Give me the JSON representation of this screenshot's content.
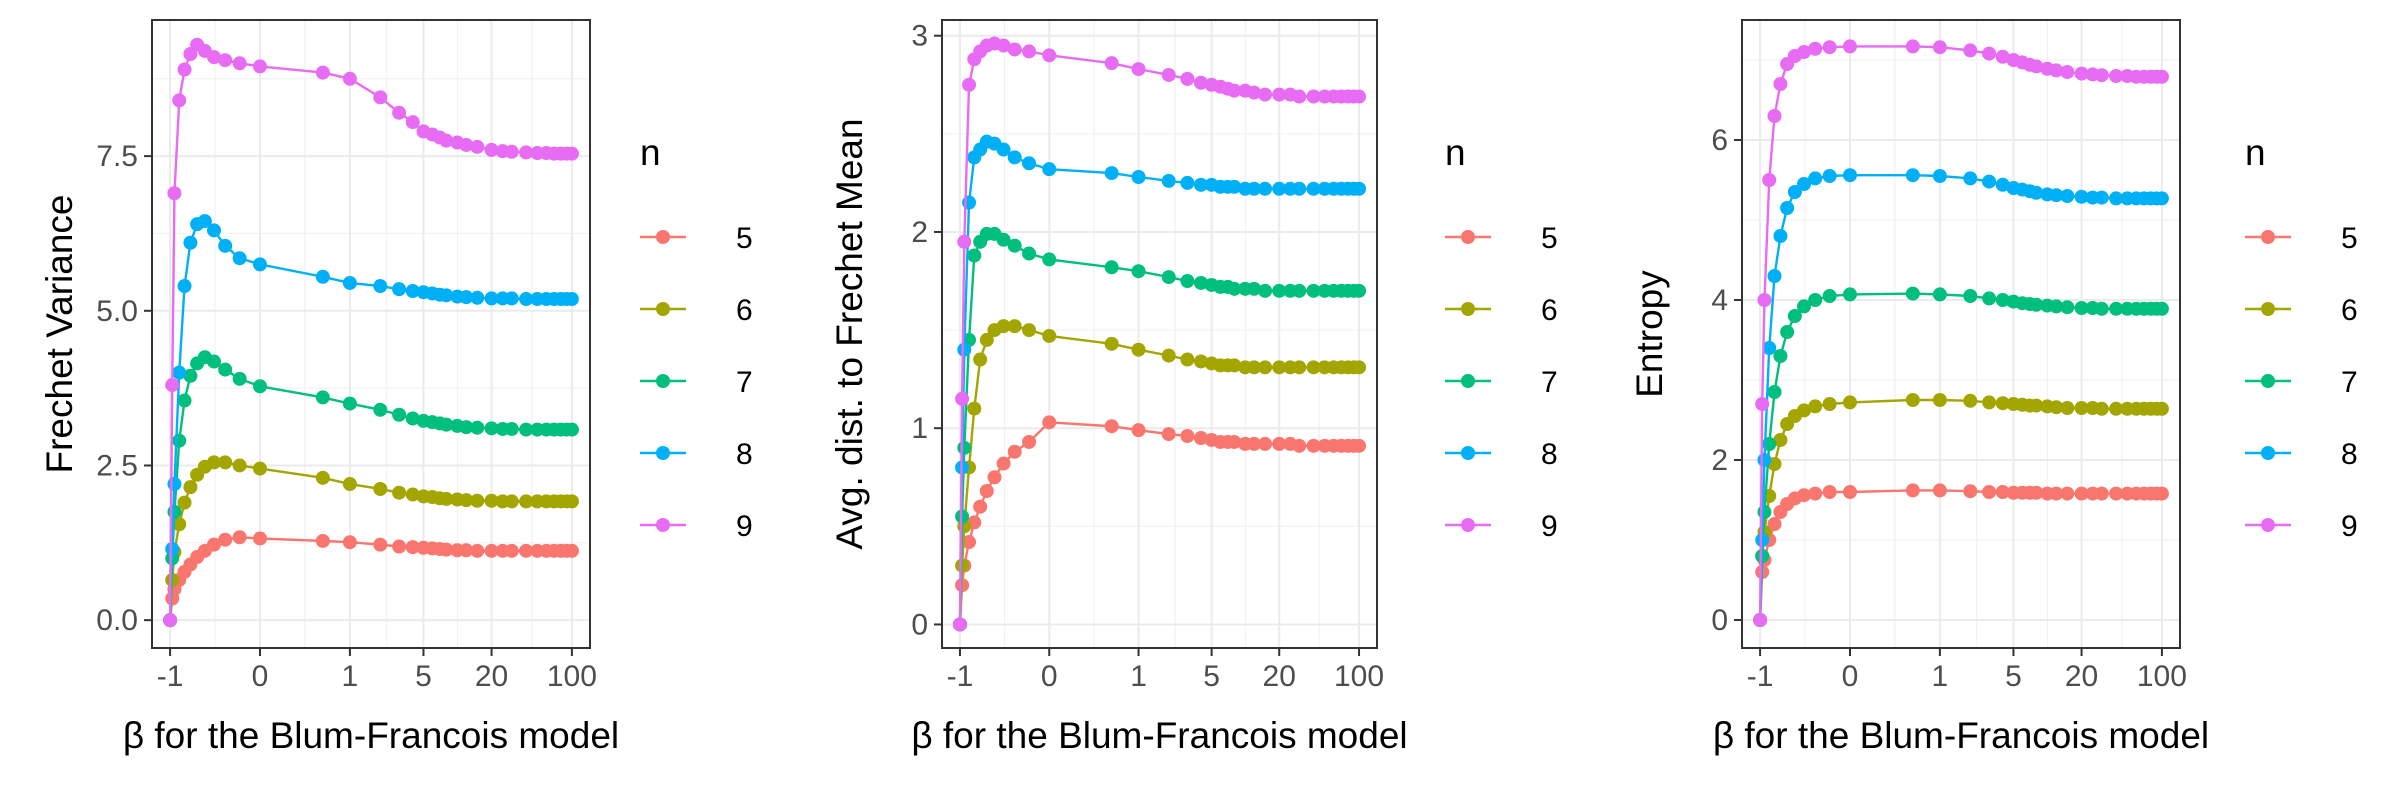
{
  "series_colors": {
    "5": "#F8766D",
    "6": "#A3A500",
    "7": "#00BF7D",
    "8": "#00B0F6",
    "9": "#E76BF3"
  },
  "x_axis": {
    "label": "β for the Blum-Francois model",
    "ticks": [
      {
        "value": -1,
        "label": "-1"
      },
      {
        "value": 0,
        "label": "0"
      },
      {
        "value": 1,
        "label": "1"
      },
      {
        "value": 5,
        "label": "5"
      },
      {
        "value": 20,
        "label": "20"
      },
      {
        "value": 100,
        "label": "100"
      }
    ],
    "x_values": [
      -1,
      -0.95,
      -0.9,
      -0.8,
      -0.7,
      -0.6,
      -0.5,
      -0.4,
      -0.3,
      -0.2,
      -0.1,
      0,
      0.5,
      1,
      2,
      3,
      4,
      5,
      6,
      7,
      8,
      10,
      12,
      15,
      20,
      25,
      30,
      40,
      50,
      60,
      70,
      80,
      90,
      100
    ]
  },
  "legend": {
    "title": "n",
    "entries": [
      "5",
      "6",
      "7",
      "8",
      "9"
    ]
  },
  "chart_data": [
    {
      "type": "line",
      "ylabel": "Frechet Variance",
      "xlabel": "β for the Blum-Francois model",
      "y_ticks": [
        {
          "value": 0,
          "label": "0.0"
        },
        {
          "value": 2.5,
          "label": "2.5"
        },
        {
          "value": 5,
          "label": "5.0"
        },
        {
          "value": 7.5,
          "label": "7.5"
        }
      ],
      "ylim": [
        -0.45,
        9.7
      ],
      "series": [
        {
          "name": "5",
          "values": [
            0.0,
            0.35,
            0.5,
            0.65,
            0.78,
            0.9,
            1.02,
            1.12,
            1.22,
            1.3,
            1.34,
            1.32,
            1.28,
            1.26,
            1.22,
            1.19,
            1.18,
            1.17,
            1.16,
            1.15,
            1.14,
            1.13,
            1.13,
            1.12,
            1.12,
            1.12,
            1.12,
            1.12,
            1.12,
            1.12,
            1.12,
            1.12,
            1.12,
            1.12
          ]
        },
        {
          "name": "6",
          "values": [
            0.0,
            0.65,
            1.1,
            1.55,
            1.9,
            2.15,
            2.35,
            2.48,
            2.55,
            2.55,
            2.5,
            2.45,
            2.3,
            2.2,
            2.12,
            2.06,
            2.03,
            2.0,
            1.99,
            1.97,
            1.96,
            1.95,
            1.94,
            1.93,
            1.93,
            1.92,
            1.92,
            1.92,
            1.92,
            1.92,
            1.92,
            1.92,
            1.92,
            1.92
          ]
        },
        {
          "name": "7",
          "values": [
            0.0,
            1.0,
            1.75,
            2.9,
            3.55,
            3.95,
            4.15,
            4.25,
            4.18,
            4.05,
            3.9,
            3.78,
            3.6,
            3.5,
            3.4,
            3.32,
            3.26,
            3.22,
            3.2,
            3.18,
            3.16,
            3.14,
            3.12,
            3.11,
            3.1,
            3.09,
            3.09,
            3.08,
            3.08,
            3.08,
            3.08,
            3.08,
            3.08,
            3.08
          ]
        },
        {
          "name": "8",
          "values": [
            0.0,
            1.15,
            2.2,
            4.0,
            5.4,
            6.1,
            6.4,
            6.45,
            6.3,
            6.05,
            5.85,
            5.75,
            5.55,
            5.45,
            5.4,
            5.35,
            5.32,
            5.3,
            5.28,
            5.26,
            5.25,
            5.23,
            5.22,
            5.21,
            5.2,
            5.2,
            5.2,
            5.19,
            5.19,
            5.19,
            5.19,
            5.19,
            5.19,
            5.19
          ]
        },
        {
          "name": "9",
          "values": [
            0.0,
            3.8,
            6.9,
            8.4,
            8.9,
            9.15,
            9.3,
            9.2,
            9.1,
            9.05,
            9.0,
            8.95,
            8.85,
            8.75,
            8.45,
            8.2,
            8.05,
            7.9,
            7.85,
            7.8,
            7.75,
            7.72,
            7.68,
            7.65,
            7.6,
            7.58,
            7.57,
            7.56,
            7.55,
            7.55,
            7.54,
            7.54,
            7.54,
            7.54
          ]
        }
      ]
    },
    {
      "type": "line",
      "ylabel": "Avg. dist. to Frechet Mean",
      "xlabel": "β for the Blum-Francois model",
      "y_ticks": [
        {
          "value": 0,
          "label": "0"
        },
        {
          "value": 1,
          "label": "1"
        },
        {
          "value": 2,
          "label": "2"
        },
        {
          "value": 3,
          "label": "3"
        }
      ],
      "ylim": [
        -0.12,
        3.08
      ],
      "series": [
        {
          "name": "5",
          "values": [
            0.0,
            0.2,
            0.3,
            0.42,
            0.52,
            0.6,
            0.68,
            0.75,
            0.82,
            0.88,
            0.93,
            1.03,
            1.01,
            0.99,
            0.97,
            0.96,
            0.95,
            0.94,
            0.93,
            0.93,
            0.93,
            0.92,
            0.92,
            0.92,
            0.92,
            0.92,
            0.91,
            0.91,
            0.91,
            0.91,
            0.91,
            0.91,
            0.91,
            0.91
          ]
        },
        {
          "name": "6",
          "values": [
            0.0,
            0.3,
            0.5,
            0.8,
            1.1,
            1.35,
            1.45,
            1.5,
            1.52,
            1.52,
            1.5,
            1.47,
            1.43,
            1.4,
            1.37,
            1.35,
            1.34,
            1.33,
            1.32,
            1.32,
            1.32,
            1.31,
            1.31,
            1.31,
            1.31,
            1.31,
            1.31,
            1.31,
            1.31,
            1.31,
            1.31,
            1.31,
            1.31,
            1.31
          ]
        },
        {
          "name": "7",
          "values": [
            0.0,
            0.55,
            0.9,
            1.45,
            1.88,
            1.95,
            1.99,
            1.99,
            1.96,
            1.93,
            1.89,
            1.86,
            1.82,
            1.8,
            1.77,
            1.75,
            1.74,
            1.73,
            1.72,
            1.72,
            1.71,
            1.71,
            1.71,
            1.7,
            1.7,
            1.7,
            1.7,
            1.7,
            1.7,
            1.7,
            1.7,
            1.7,
            1.7,
            1.7
          ]
        },
        {
          "name": "8",
          "values": [
            0.0,
            0.8,
            1.4,
            2.15,
            2.38,
            2.42,
            2.46,
            2.45,
            2.42,
            2.38,
            2.35,
            2.32,
            2.3,
            2.28,
            2.26,
            2.25,
            2.24,
            2.24,
            2.23,
            2.23,
            2.23,
            2.22,
            2.22,
            2.22,
            2.22,
            2.22,
            2.22,
            2.22,
            2.22,
            2.22,
            2.22,
            2.22,
            2.22,
            2.22
          ]
        },
        {
          "name": "9",
          "values": [
            0.0,
            1.15,
            1.95,
            2.75,
            2.88,
            2.92,
            2.95,
            2.96,
            2.95,
            2.93,
            2.92,
            2.9,
            2.86,
            2.83,
            2.8,
            2.78,
            2.76,
            2.75,
            2.74,
            2.73,
            2.72,
            2.72,
            2.71,
            2.7,
            2.7,
            2.7,
            2.69,
            2.69,
            2.69,
            2.69,
            2.69,
            2.69,
            2.69,
            2.69
          ]
        }
      ]
    },
    {
      "type": "line",
      "ylabel": "Entropy",
      "xlabel": "β for the Blum-Francois model",
      "y_ticks": [
        {
          "value": 0,
          "label": "0"
        },
        {
          "value": 2,
          "label": "2"
        },
        {
          "value": 4,
          "label": "4"
        },
        {
          "value": 6,
          "label": "6"
        }
      ],
      "ylim": [
        -0.35,
        7.5
      ],
      "series": [
        {
          "name": "5",
          "values": [
            0.0,
            0.6,
            0.75,
            1.0,
            1.2,
            1.35,
            1.45,
            1.52,
            1.56,
            1.58,
            1.6,
            1.6,
            1.62,
            1.62,
            1.61,
            1.6,
            1.6,
            1.59,
            1.59,
            1.59,
            1.59,
            1.58,
            1.58,
            1.58,
            1.58,
            1.58,
            1.58,
            1.58,
            1.58,
            1.58,
            1.58,
            1.58,
            1.58,
            1.58
          ]
        },
        {
          "name": "6",
          "values": [
            0.0,
            0.8,
            1.1,
            1.55,
            1.95,
            2.25,
            2.45,
            2.55,
            2.62,
            2.67,
            2.7,
            2.72,
            2.75,
            2.75,
            2.74,
            2.72,
            2.71,
            2.7,
            2.69,
            2.68,
            2.68,
            2.67,
            2.66,
            2.65,
            2.65,
            2.65,
            2.64,
            2.64,
            2.64,
            2.64,
            2.64,
            2.64,
            2.64,
            2.64
          ]
        },
        {
          "name": "7",
          "values": [
            0.0,
            0.8,
            1.35,
            2.2,
            2.85,
            3.3,
            3.6,
            3.8,
            3.92,
            4.0,
            4.05,
            4.07,
            4.08,
            4.07,
            4.05,
            4.02,
            4.0,
            3.98,
            3.96,
            3.95,
            3.94,
            3.93,
            3.92,
            3.91,
            3.9,
            3.9,
            3.89,
            3.89,
            3.89,
            3.89,
            3.89,
            3.89,
            3.89,
            3.89
          ]
        },
        {
          "name": "8",
          "values": [
            0.0,
            1.0,
            2.0,
            3.4,
            4.3,
            4.8,
            5.15,
            5.35,
            5.45,
            5.52,
            5.55,
            5.56,
            5.56,
            5.55,
            5.52,
            5.48,
            5.44,
            5.4,
            5.38,
            5.36,
            5.34,
            5.32,
            5.31,
            5.3,
            5.29,
            5.28,
            5.28,
            5.27,
            5.27,
            5.27,
            5.27,
            5.27,
            5.27,
            5.27
          ]
        },
        {
          "name": "9",
          "values": [
            0.0,
            2.7,
            4.0,
            5.5,
            6.3,
            6.7,
            6.95,
            7.05,
            7.1,
            7.14,
            7.16,
            7.17,
            7.17,
            7.16,
            7.12,
            7.08,
            7.04,
            7.0,
            6.97,
            6.94,
            6.92,
            6.89,
            6.87,
            6.85,
            6.83,
            6.82,
            6.81,
            6.8,
            6.8,
            6.79,
            6.79,
            6.79,
            6.79,
            6.79
          ]
        }
      ]
    }
  ]
}
